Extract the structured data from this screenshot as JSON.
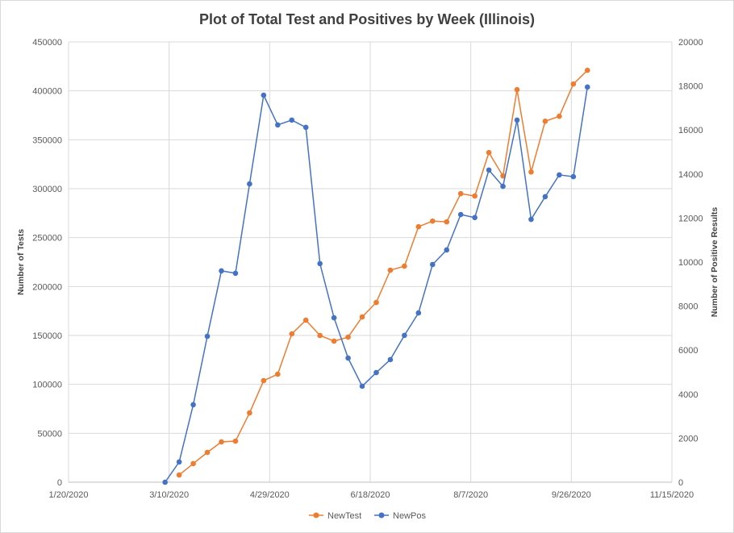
{
  "chart_data": {
    "type": "line",
    "title": "Plot of Total Test and Positives by Week (Illinois)",
    "xlabel": "",
    "ylabel": "Number of Tests",
    "y2label": "Number of Positive Results",
    "xlim": [
      "2020-01-20",
      "2020-11-15"
    ],
    "xticks": [
      "1/20/2020",
      "3/10/2020",
      "4/29/2020",
      "6/18/2020",
      "8/7/2020",
      "9/26/2020",
      "11/15/2020"
    ],
    "ylim": [
      0,
      450000
    ],
    "yticks": [
      "0",
      "50000",
      "100000",
      "150000",
      "200000",
      "250000",
      "300000",
      "350000",
      "400000",
      "450000"
    ],
    "y2lim": [
      0,
      20000
    ],
    "y2ticks": [
      "0",
      "2000",
      "4000",
      "6000",
      "8000",
      "10000",
      "12000",
      "14000",
      "16000",
      "18000",
      "20000"
    ],
    "grid": true,
    "legend_position": "bottom",
    "x": [
      "2020-03-08",
      "2020-03-15",
      "2020-03-22",
      "2020-03-29",
      "2020-04-05",
      "2020-04-12",
      "2020-04-19",
      "2020-04-26",
      "2020-05-03",
      "2020-05-10",
      "2020-05-17",
      "2020-05-24",
      "2020-05-31",
      "2020-06-07",
      "2020-06-14",
      "2020-06-21",
      "2020-06-28",
      "2020-07-05",
      "2020-07-12",
      "2020-07-19",
      "2020-07-26",
      "2020-08-02",
      "2020-08-09",
      "2020-08-16",
      "2020-08-23",
      "2020-08-30",
      "2020-09-06",
      "2020-09-13",
      "2020-09-20",
      "2020-09-27",
      "2020-10-04"
    ],
    "series": [
      {
        "name": "NewTest",
        "axis": "left",
        "color": "#ED7D31",
        "values": [
          null,
          7400,
          19000,
          30500,
          41200,
          42000,
          70800,
          103800,
          110400,
          151600,
          165600,
          150000,
          144200,
          148300,
          168900,
          183700,
          216700,
          220800,
          261100,
          266900,
          266100,
          294900,
          292500,
          336900,
          313000,
          401200,
          317100,
          369000,
          374000,
          407000,
          421000
        ]
      },
      {
        "name": "NewPos",
        "axis": "right",
        "color": "#4472C4",
        "values": [
          0,
          920,
          3520,
          6630,
          9600,
          9490,
          13550,
          17580,
          16230,
          16450,
          16120,
          9930,
          7470,
          5640,
          4360,
          4980,
          5570,
          6670,
          7690,
          9890,
          10550,
          12160,
          12020,
          14180,
          13440,
          16450,
          11940,
          12970,
          13960,
          13880,
          17950
        ]
      }
    ]
  }
}
